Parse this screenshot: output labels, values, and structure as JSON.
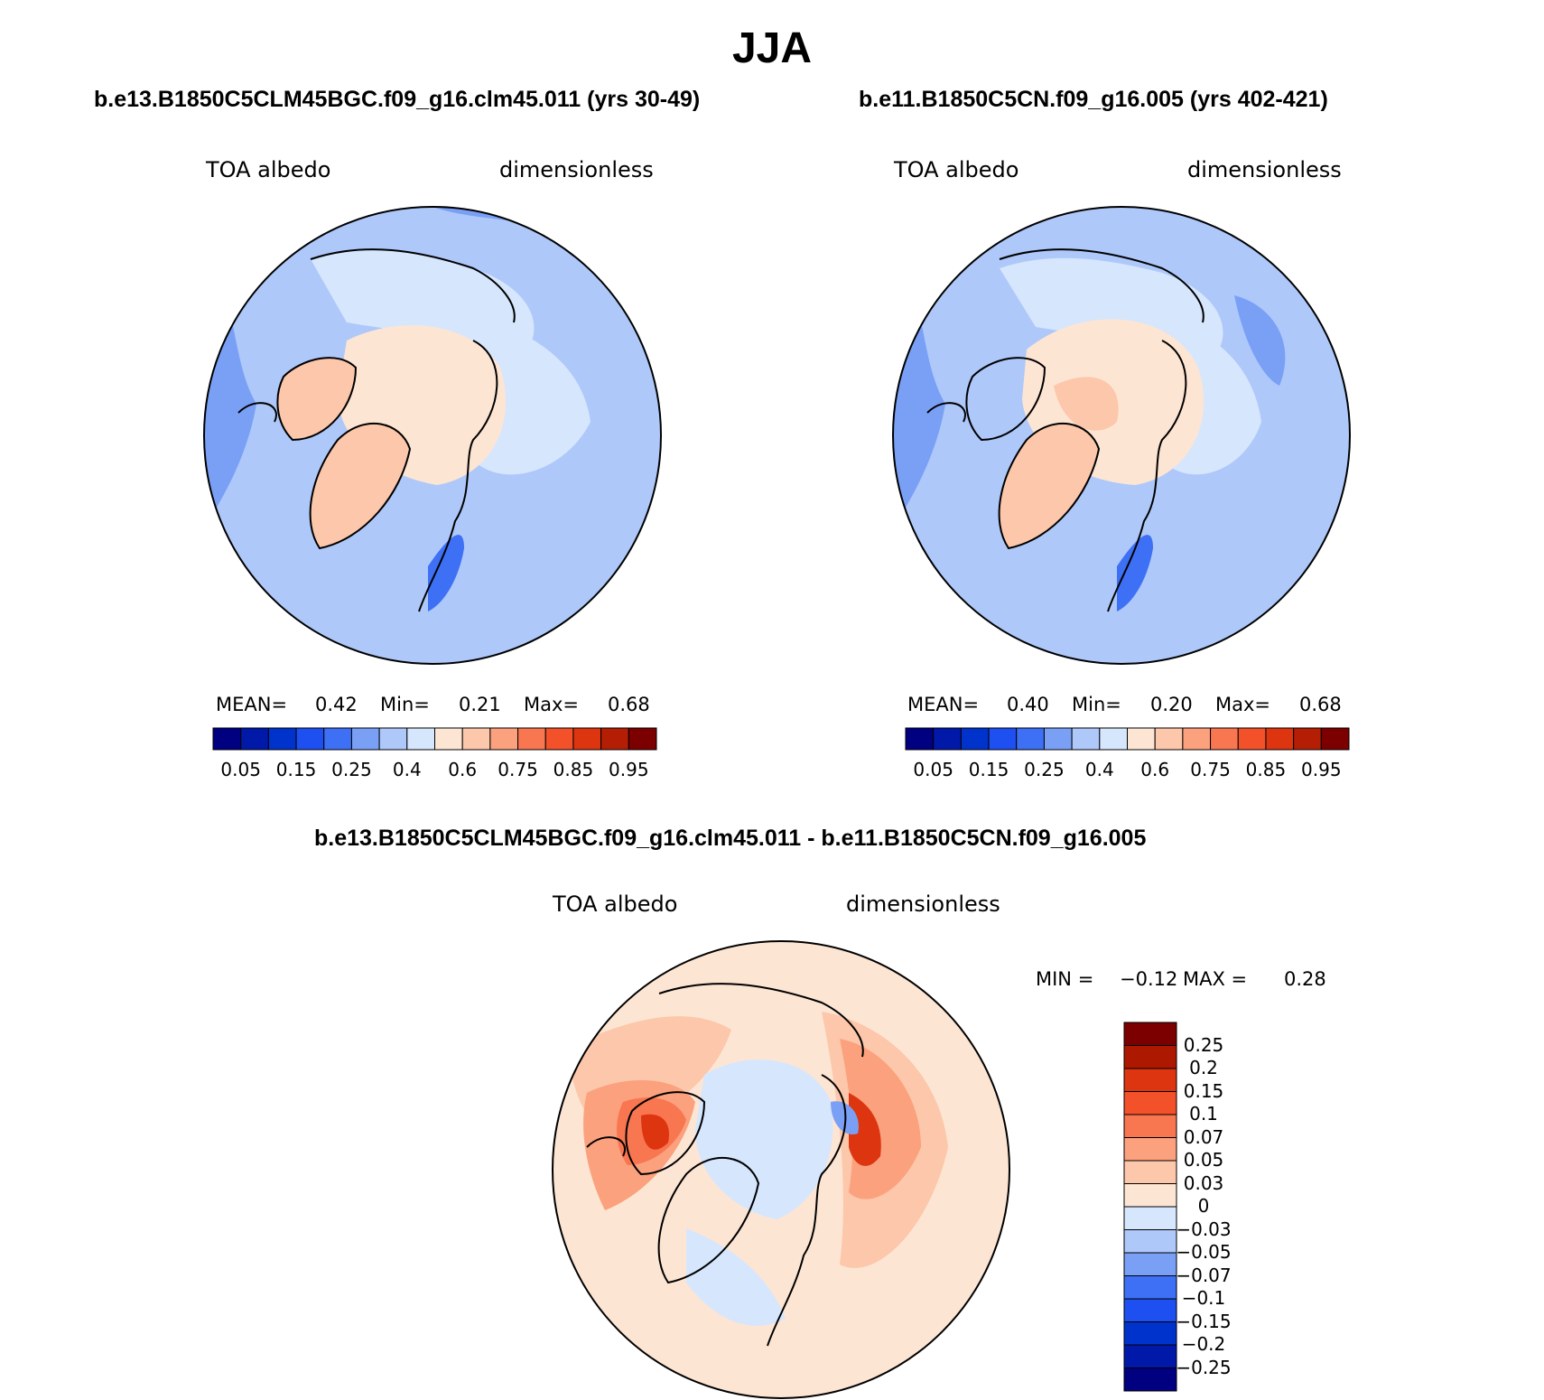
{
  "title": "JJA",
  "panels": [
    {
      "case_title": "b.e13.B1850C5CLM45BGC.f09_g16.clm45.011 (yrs 30-49)",
      "variable": "TOA albedo",
      "units": "dimensionless",
      "stats": {
        "mean_label": "MEAN=",
        "mean": "0.42",
        "min_label": "Min=",
        "min": "0.21",
        "max_label": "Max=",
        "max": "0.68"
      }
    },
    {
      "case_title": "b.e11.B1850C5CN.f09_g16.005 (yrs 402-421)",
      "variable": "TOA albedo",
      "units": "dimensionless",
      "stats": {
        "mean_label": "MEAN=",
        "mean": "0.40",
        "min_label": "Min=",
        "min": "0.20",
        "max_label": "Max=",
        "max": "0.68"
      }
    }
  ],
  "diff_panel": {
    "case_title": "b.e13.B1850C5CLM45BGC.f09_g16.clm45.011 - b.e11.B1850C5CN.f09_g16.005",
    "variable": "TOA albedo",
    "units": "dimensionless",
    "min_label": "MIN =",
    "min": "−0.12",
    "max_label": "MAX =",
    "max": "0.28"
  },
  "colorbar_abs": {
    "colors": [
      "#000080",
      "#0019a9",
      "#0032cc",
      "#1e4ff0",
      "#3d70f5",
      "#7aa0f6",
      "#aec8fa",
      "#d6e6fd",
      "#fde5d4",
      "#fcc7aa",
      "#fba17d",
      "#f87650",
      "#f2512a",
      "#dc3510",
      "#b41e05",
      "#7d0000"
    ],
    "labels": [
      "0.05",
      "0.15",
      "0.25",
      "0.4",
      "0.6",
      "0.75",
      "0.85",
      "0.95"
    ]
  },
  "colorbar_diff": {
    "colors": [
      "#7d0000",
      "#ad1900",
      "#dc3510",
      "#f2512a",
      "#f87650",
      "#fba17d",
      "#fcc7aa",
      "#fde5d4",
      "#d6e6fd",
      "#aec8fa",
      "#7aa0f6",
      "#3d70f5",
      "#1e4ff0",
      "#0032cc",
      "#0019a9",
      "#000080"
    ],
    "labels": [
      "0.25",
      "0.2",
      "0.15",
      "0.1",
      "0.07",
      "0.05",
      "0.03",
      "0",
      "−0.03",
      "−0.05",
      "−0.07",
      "−0.1",
      "−0.15",
      "−0.2",
      "−0.25"
    ]
  },
  "map_colors": {
    "ocean": "#aec8fa",
    "ocean_dark": "#7aa0f6",
    "ocean_darker": "#3d70f5",
    "land_light": "#d6e6fd",
    "ice": "#fde5d4",
    "ice_warm": "#fcc7aa",
    "diff_base": "#fde5d4",
    "diff_mid": "#fcc7aa",
    "diff_high": "#fba17d",
    "diff_hot": "#f87650",
    "diff_red": "#dc3510",
    "diff_cool": "#d6e6fd",
    "diff_blue": "#7aa0f6"
  }
}
